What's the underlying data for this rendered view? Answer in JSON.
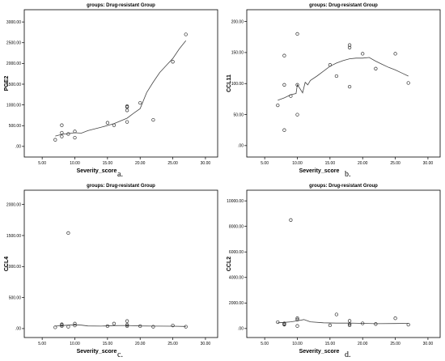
{
  "chart_data": [
    {
      "type": "scatter",
      "title": "groups: Drug-resistant Group",
      "xlabel": "Severity_score",
      "ylabel": "PGE2",
      "caption": "a.",
      "xlim": [
        3,
        31
      ],
      "ylim": [
        -100,
        3100
      ],
      "xticks": [
        "5.00",
        "10.00",
        "15.00",
        "20.00",
        "25.00",
        "30.00"
      ],
      "yticks": [
        ".00",
        "500.00",
        "1000.00",
        "1500.00",
        "2000.00",
        "2500.00",
        "3000.00"
      ],
      "points": [
        [
          7,
          160
        ],
        [
          8,
          240
        ],
        [
          8,
          330
        ],
        [
          8,
          510
        ],
        [
          9,
          300
        ],
        [
          10,
          210
        ],
        [
          10,
          360
        ],
        [
          15,
          570
        ],
        [
          16,
          510
        ],
        [
          18,
          590
        ],
        [
          18,
          870
        ],
        [
          18,
          950
        ],
        [
          18,
          970
        ],
        [
          20,
          1050
        ],
        [
          22,
          640
        ],
        [
          25,
          2040
        ],
        [
          27,
          2700
        ]
      ],
      "fit": [
        [
          7,
          250
        ],
        [
          8,
          290
        ],
        [
          9,
          310
        ],
        [
          10,
          330
        ],
        [
          11,
          320
        ],
        [
          12,
          380
        ],
        [
          14,
          460
        ],
        [
          16,
          550
        ],
        [
          18,
          680
        ],
        [
          19,
          800
        ],
        [
          20,
          910
        ],
        [
          21,
          1300
        ],
        [
          22,
          1550
        ],
        [
          23,
          1780
        ],
        [
          24,
          1950
        ],
        [
          25,
          2120
        ],
        [
          26,
          2350
        ],
        [
          27,
          2550
        ]
      ],
      "grid": false
    },
    {
      "type": "scatter",
      "title": "groups: Drug-resistant Group",
      "xlabel": "Severity_score",
      "ylabel": "CCL11",
      "caption": "b.",
      "xlim": [
        3,
        31
      ],
      "ylim": [
        -8,
        206
      ],
      "xticks": [
        "5.00",
        "10.00",
        "15.00",
        "20.00",
        "25.00",
        "30.00"
      ],
      "yticks": [
        ".00",
        "50.00",
        "100.00",
        "150.00",
        "200.00"
      ],
      "points": [
        [
          7,
          65
        ],
        [
          8,
          25
        ],
        [
          8,
          98
        ],
        [
          8,
          145
        ],
        [
          9,
          80
        ],
        [
          10,
          50
        ],
        [
          10,
          98
        ],
        [
          10,
          180
        ],
        [
          15,
          130
        ],
        [
          16,
          112
        ],
        [
          18,
          95
        ],
        [
          18,
          158
        ],
        [
          18,
          162
        ],
        [
          20,
          148
        ],
        [
          22,
          124
        ],
        [
          25,
          148
        ],
        [
          27,
          101
        ]
      ],
      "fit": [
        [
          7,
          73
        ],
        [
          8,
          77
        ],
        [
          9,
          82
        ],
        [
          9.8,
          84
        ],
        [
          10,
          98
        ],
        [
          10.4,
          92
        ],
        [
          10.8,
          85
        ],
        [
          11.2,
          102
        ],
        [
          11.6,
          98
        ],
        [
          12,
          105
        ],
        [
          13,
          112
        ],
        [
          14,
          120
        ],
        [
          15,
          128
        ],
        [
          16,
          133
        ],
        [
          17,
          137
        ],
        [
          18,
          140
        ],
        [
          19,
          141
        ],
        [
          20,
          141
        ],
        [
          21,
          142
        ],
        [
          22,
          136
        ],
        [
          23,
          131
        ],
        [
          24,
          126
        ],
        [
          25,
          122
        ],
        [
          26,
          117
        ],
        [
          27,
          112
        ]
      ],
      "grid": false
    },
    {
      "type": "scatter",
      "title": "groups: Drug-resistant Group",
      "xlabel": "Severity_score",
      "ylabel": "CCL4",
      "caption": "c.",
      "xlim": [
        3,
        31
      ],
      "ylim": [
        -40,
        2100
      ],
      "xticks": [
        "5.00",
        "10.00",
        "15.00",
        "20.00",
        "25.00",
        "30.00"
      ],
      "yticks": [
        ".00",
        "500.00",
        "1000.00",
        "1500.00",
        "2000.00"
      ],
      "points": [
        [
          7,
          20
        ],
        [
          8,
          40
        ],
        [
          8,
          60
        ],
        [
          8,
          70
        ],
        [
          9,
          30
        ],
        [
          9,
          1540
        ],
        [
          10,
          50
        ],
        [
          10,
          80
        ],
        [
          15,
          40
        ],
        [
          16,
          80
        ],
        [
          18,
          40
        ],
        [
          18,
          60
        ],
        [
          18,
          120
        ],
        [
          20,
          40
        ],
        [
          22,
          30
        ],
        [
          25,
          50
        ],
        [
          27,
          30
        ]
      ],
      "fit": [
        [
          7,
          40
        ],
        [
          8,
          48
        ],
        [
          9,
          55
        ],
        [
          10,
          60
        ],
        [
          11,
          55
        ],
        [
          12,
          42
        ],
        [
          14,
          40
        ],
        [
          16,
          48
        ],
        [
          18,
          50
        ],
        [
          20,
          42
        ],
        [
          22,
          40
        ],
        [
          25,
          38
        ],
        [
          27,
          35
        ]
      ],
      "grid": false
    },
    {
      "type": "scatter",
      "title": "groups: Drug-resistant Group",
      "xlabel": "Severity_score",
      "ylabel": "CCL2",
      "caption": "d.",
      "xlim": [
        3,
        31
      ],
      "ylim": [
        -200,
        10200
      ],
      "xticks": [
        "5.00",
        "10.00",
        "15.00",
        "20.00",
        "25.00",
        "30.00"
      ],
      "yticks": [
        ".00",
        "2000.00",
        "4000.00",
        "6000.00",
        "8000.00",
        "10000.00"
      ],
      "points": [
        [
          7,
          500
        ],
        [
          8,
          300
        ],
        [
          8,
          350
        ],
        [
          8,
          400
        ],
        [
          9,
          8500
        ],
        [
          10,
          200
        ],
        [
          10,
          700
        ],
        [
          10,
          800
        ],
        [
          15,
          250
        ],
        [
          16,
          1100
        ],
        [
          18,
          250
        ],
        [
          18,
          350
        ],
        [
          18,
          600
        ],
        [
          20,
          400
        ],
        [
          22,
          350
        ],
        [
          25,
          800
        ],
        [
          27,
          300
        ]
      ],
      "fit": [
        [
          7,
          450
        ],
        [
          8,
          480
        ],
        [
          9,
          520
        ],
        [
          10,
          600
        ],
        [
          11,
          700
        ],
        [
          12,
          520
        ],
        [
          14,
          450
        ],
        [
          16,
          420
        ],
        [
          18,
          430
        ],
        [
          20,
          400
        ],
        [
          22,
          380
        ],
        [
          25,
          390
        ],
        [
          27,
          400
        ]
      ],
      "grid": false
    }
  ]
}
